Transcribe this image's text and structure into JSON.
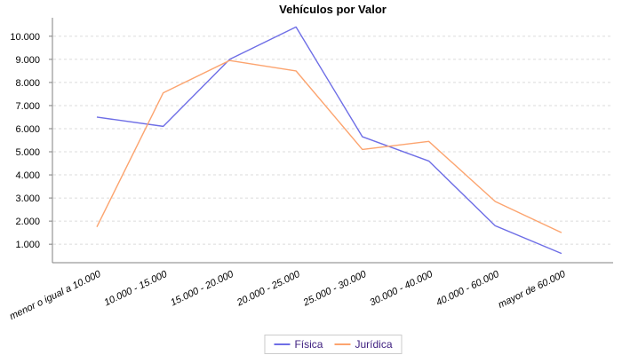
{
  "chart_data": {
    "type": "line",
    "title": "Vehículos por Valor",
    "categories": [
      "menor o igual a 10.000",
      "10.000 - 15.000",
      "15.000 - 20.000",
      "20.000 - 25.000",
      "25.000 - 30.000",
      "30.000 - 40.000",
      "40.000 - 60.000",
      "mayor de 60.000"
    ],
    "series": [
      {
        "name": "Física",
        "color": "#6E6EE6",
        "values": [
          6500,
          6100,
          9000,
          10400,
          5650,
          4600,
          1800,
          600
        ]
      },
      {
        "name": "Jurídica",
        "color": "#FCA46F",
        "values": [
          1750,
          7550,
          8950,
          8500,
          5100,
          5450,
          2850,
          1500
        ]
      }
    ],
    "y_ticks": [
      {
        "value": 1000,
        "label": "1.000"
      },
      {
        "value": 2000,
        "label": "2.000"
      },
      {
        "value": 3000,
        "label": "3.000"
      },
      {
        "value": 4000,
        "label": "4.000"
      },
      {
        "value": 5000,
        "label": "5.000"
      },
      {
        "value": 6000,
        "label": "6.000"
      },
      {
        "value": 7000,
        "label": "7.000"
      },
      {
        "value": 8000,
        "label": "8.000"
      },
      {
        "value": 9000,
        "label": "9.000"
      },
      {
        "value": 10000,
        "label": "10.000"
      }
    ],
    "ylim": [
      200,
      10800
    ],
    "xlabel": "",
    "ylabel": "",
    "grid": "horizontal-dashed",
    "legend_position": "bottom-center",
    "colors": {
      "title": "#000000",
      "tick_label": "#000000",
      "axis": "#808080",
      "gridline": "#DBDBDB",
      "legend_text": "#3F2080",
      "legend_border": "#CCCCCC",
      "background": "#FFFFFF"
    }
  }
}
